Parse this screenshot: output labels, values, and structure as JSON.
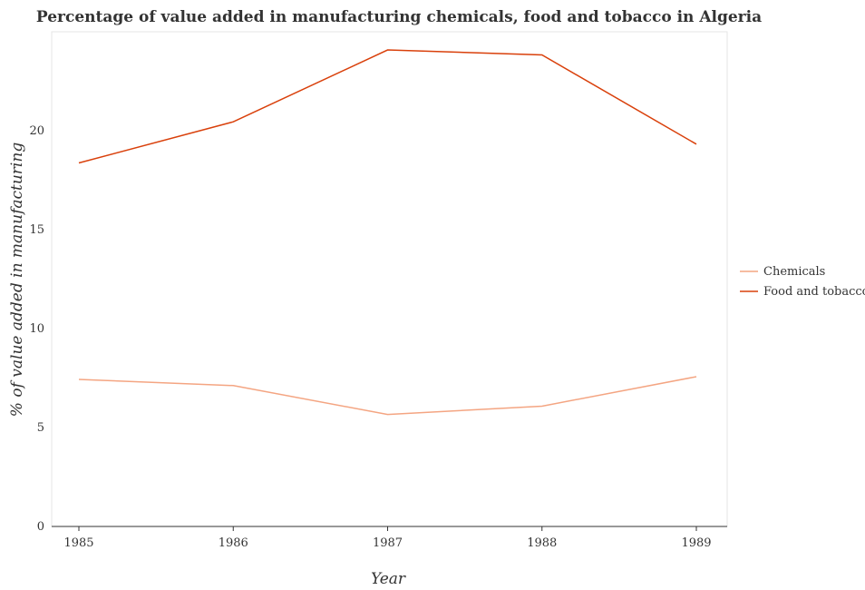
{
  "chart_data": {
    "type": "line",
    "title": "Percentage of value added in manufacturing chemicals, food and tobacco in Algeria",
    "xlabel": "Year",
    "ylabel": "% of value added in manufacturing",
    "x": [
      "1985",
      "1986",
      "1987",
      "1988",
      "1989"
    ],
    "ylim": [
      0,
      25
    ],
    "yticks": [
      0,
      5,
      10,
      15,
      20
    ],
    "ytick_labels": [
      "0",
      "5",
      "10",
      "15",
      "20"
    ],
    "grid": false,
    "legend_position": "right",
    "series": [
      {
        "name": "Chemicals",
        "color": "#f4a582",
        "values": [
          7.43,
          7.12,
          5.66,
          6.08,
          7.57
        ]
      },
      {
        "name": "Food and tobacco",
        "color": "#d9400b",
        "values": [
          18.37,
          20.45,
          24.08,
          23.83,
          19.32
        ]
      }
    ]
  }
}
